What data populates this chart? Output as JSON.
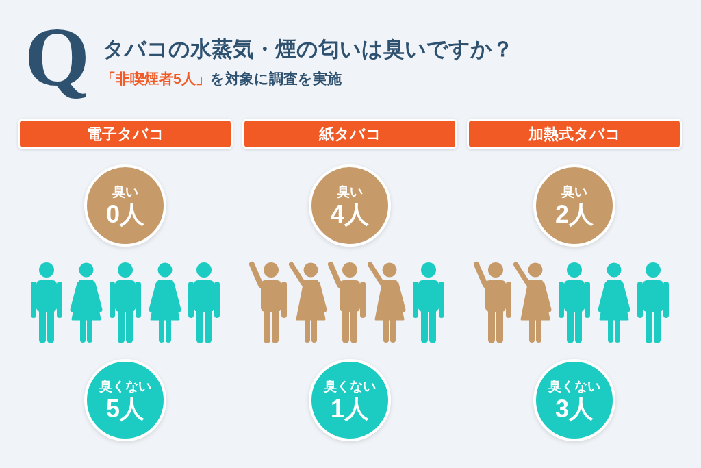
{
  "chart_data": {
    "type": "other",
    "title": "タバコの水蒸気・煙の匂いは臭いですか？",
    "subtitle": "を対象に調査を実施",
    "annotations": [
      "Q",
      "「非喫煙者5人」"
    ],
    "categories": [
      "電子タバコ",
      "紙タバコ",
      "加熱式タバコ"
    ],
    "series": [
      {
        "name": "臭い",
        "color": "#c69a69",
        "values": [
          0,
          4,
          2
        ],
        "value_labels": [
          "0人",
          "4人",
          "2人"
        ]
      },
      {
        "name": "臭くない",
        "color": "#1ccbc1",
        "values": [
          5,
          1,
          3
        ],
        "value_labels": [
          "5人",
          "1人",
          "3人"
        ]
      }
    ]
  }
}
